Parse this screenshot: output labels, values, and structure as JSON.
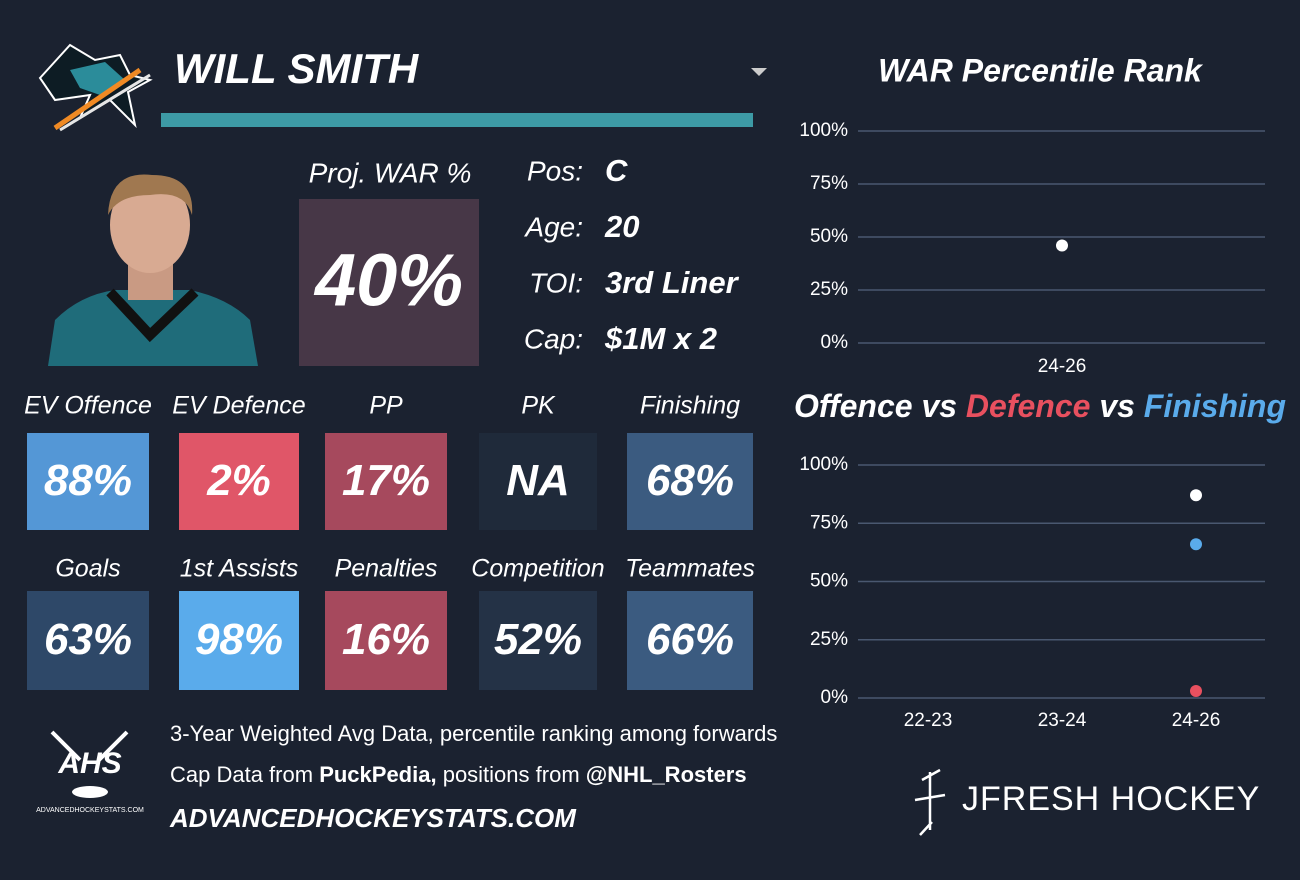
{
  "header": {
    "name": "WILL SMITH",
    "proj_label": "Proj. WAR %",
    "proj_value": "40%",
    "proj_color": "#473747",
    "info": [
      {
        "label": "Pos:",
        "value": "C"
      },
      {
        "label": "Age:",
        "value": "20"
      },
      {
        "label": "TOI:",
        "value": "3rd Liner"
      },
      {
        "label": "Cap:",
        "value": "$1M x 2"
      }
    ]
  },
  "tiles": [
    {
      "label": "EV Offence",
      "value": "88%",
      "color": "#5497d6"
    },
    {
      "label": "EV Defence",
      "value": "2%",
      "color": "#e05668"
    },
    {
      "label": "PP",
      "value": "17%",
      "color": "#a6495d"
    },
    {
      "label": "PK",
      "value": "NA",
      "color": "#1f2a3a"
    },
    {
      "label": "Finishing",
      "value": "68%",
      "color": "#3b5b80"
    },
    {
      "label": "Goals",
      "value": "63%",
      "color": "#2e4868"
    },
    {
      "label": "1st Assists",
      "value": "98%",
      "color": "#5aabeb"
    },
    {
      "label": "Penalties",
      "value": "16%",
      "color": "#a6495d"
    },
    {
      "label": "Competition",
      "value": "52%",
      "color": "#243246"
    },
    {
      "label": "Teammates",
      "value": "66%",
      "color": "#3b5b80"
    }
  ],
  "footer": {
    "line1": "3-Year Weighted Avg Data, percentile ranking among forwards",
    "line2": [
      "Cap Data from",
      "PuckPedia,",
      "positions from",
      "@NHL_Rosters"
    ],
    "site": "ADVANCEDHOCKEYSTATS.COM",
    "logo_text": "AHS",
    "logo_caption": "ADVANCEDHOCKEYSTATS.COM",
    "brand": "JFRESH HOCKEY"
  },
  "chart_data": [
    {
      "type": "scatter",
      "title": "WAR Percentile Rank",
      "categories": [
        "24-26"
      ],
      "series": [
        {
          "color": "#ffffff",
          "values": [
            46
          ]
        }
      ],
      "ylim": [
        0,
        100
      ],
      "yticks": [
        {
          "value": 0,
          "label": "0%"
        },
        {
          "value": 25,
          "label": "25%"
        },
        {
          "value": 50,
          "label": "50%"
        },
        {
          "value": 75,
          "label": "75%"
        },
        {
          "value": 100,
          "label": "100%"
        }
      ],
      "grid": true
    },
    {
      "type": "scatter",
      "title_joiner": "vs",
      "categories": [
        "22-23",
        "23-24",
        "24-26"
      ],
      "series": [
        {
          "name": "Offence",
          "color": "#ffffff",
          "values": [
            null,
            null,
            87
          ]
        },
        {
          "name": "Defence",
          "color": "#e8505f",
          "values": [
            null,
            null,
            3
          ]
        },
        {
          "name": "Finishing",
          "color": "#5aabeb",
          "values": [
            null,
            null,
            66
          ]
        }
      ],
      "ylim": [
        0,
        100
      ],
      "yticks": [
        {
          "value": 0,
          "label": "0%"
        },
        {
          "value": 25,
          "label": "25%"
        },
        {
          "value": 50,
          "label": "50%"
        },
        {
          "value": 75,
          "label": "75%"
        },
        {
          "value": 100,
          "label": "100%"
        }
      ],
      "grid": true
    }
  ]
}
